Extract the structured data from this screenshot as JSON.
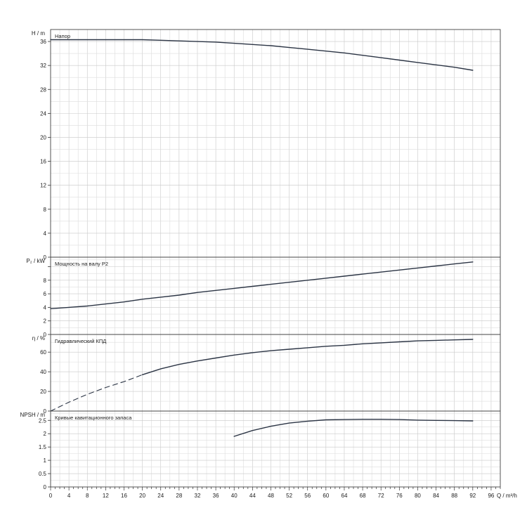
{
  "chart_data": {
    "type": "line",
    "x_axis": {
      "label": "Q / m³/h",
      "range": [
        0,
        98
      ],
      "major_ticks": [
        0,
        4,
        8,
        12,
        16,
        20,
        24,
        28,
        32,
        36,
        40,
        44,
        48,
        52,
        56,
        60,
        64,
        68,
        72,
        76,
        80,
        84,
        88,
        92,
        96
      ],
      "tick_labels": [
        "0",
        "4",
        "8",
        "12",
        "16",
        "20",
        "24",
        "28",
        "32",
        "36",
        "40",
        "44",
        "48",
        "52",
        "56",
        "60",
        "64",
        "68",
        "72",
        "76",
        "80",
        "84",
        "88",
        "92",
        "96"
      ],
      "grid": true
    },
    "panels": [
      {
        "id": "head",
        "title": "Напор",
        "ylabel": "H / m",
        "ylim": [
          0,
          38
        ],
        "yticks": [
          0,
          4,
          8,
          12,
          16,
          20,
          24,
          28,
          32,
          36
        ],
        "ytick_labels": [
          "0",
          "4",
          "8",
          "12",
          "16",
          "20",
          "24",
          "28",
          "32",
          "36"
        ],
        "series": [
          {
            "style": "solid",
            "x": [
              0,
              8,
              16,
              20,
              24,
              28,
              32,
              36,
              40,
              44,
              48,
              52,
              56,
              60,
              64,
              68,
              72,
              76,
              80,
              84,
              88,
              92
            ],
            "y": [
              36.3,
              36.3,
              36.3,
              36.3,
              36.2,
              36.1,
              36.0,
              35.9,
              35.7,
              35.5,
              35.3,
              35.0,
              34.7,
              34.4,
              34.1,
              33.7,
              33.3,
              32.9,
              32.5,
              32.1,
              31.7,
              31.2
            ]
          }
        ]
      },
      {
        "id": "power",
        "title": "Мощность на валу P2",
        "ylabel": "P₂ / kW",
        "ylim": [
          0,
          11.4
        ],
        "yticks": [
          0,
          2,
          4,
          6,
          8,
          10
        ],
        "ytick_labels": [
          "0",
          "2",
          "4",
          "6",
          "8",
          ""
        ],
        "series": [
          {
            "style": "solid",
            "x": [
              0,
              4,
              8,
              12,
              16,
              20,
              24,
              28,
              32,
              36,
              40,
              44,
              48,
              52,
              56,
              60,
              64,
              68,
              72,
              76,
              80,
              84,
              88,
              92
            ],
            "y": [
              3.8,
              4.0,
              4.2,
              4.5,
              4.8,
              5.2,
              5.5,
              5.8,
              6.2,
              6.5,
              6.8,
              7.1,
              7.4,
              7.7,
              8.0,
              8.3,
              8.6,
              8.9,
              9.2,
              9.5,
              9.8,
              10.1,
              10.4,
              10.7
            ]
          }
        ]
      },
      {
        "id": "efficiency",
        "title": "Гидравлический КПД",
        "ylabel": "η / %",
        "ylim": [
          0,
          78
        ],
        "yticks": [
          0,
          20,
          40,
          60
        ],
        "ytick_labels": [
          "0",
          "20",
          "40",
          "60"
        ],
        "series": [
          {
            "style": "dashed",
            "x": [
              0,
              4,
              8,
              12,
              16,
              20
            ],
            "y": [
              0,
              9,
              17,
              24,
              30,
              37
            ]
          },
          {
            "style": "solid",
            "x": [
              20,
              24,
              28,
              32,
              36,
              40,
              44,
              48,
              52,
              56,
              60,
              64,
              68,
              72,
              76,
              80,
              84,
              88,
              92
            ],
            "y": [
              37,
              43,
              47.5,
              51,
              54,
              57,
              59.5,
              61.5,
              63,
              64.5,
              66,
              67,
              68.5,
              69.5,
              70.5,
              71.5,
              72,
              72.5,
              73
            ]
          }
        ]
      },
      {
        "id": "npsh",
        "title": "Кривые кавитационного запаса",
        "ylabel": "NPSH / m",
        "ylim": [
          0,
          2.85
        ],
        "yticks": [
          0,
          0.5,
          1,
          1.5,
          2,
          2.5
        ],
        "ytick_labels": [
          "0",
          "0.5",
          "1",
          "1.5",
          "2",
          "2.5"
        ],
        "series": [
          {
            "style": "solid",
            "x": [
              40,
              44,
              48,
              52,
              56,
              60,
              64,
              68,
              72,
              76,
              80,
              84,
              88,
              92
            ],
            "y": [
              1.9,
              2.12,
              2.28,
              2.4,
              2.47,
              2.52,
              2.53,
              2.54,
              2.54,
              2.53,
              2.51,
              2.5,
              2.49,
              2.48
            ]
          }
        ]
      }
    ]
  }
}
